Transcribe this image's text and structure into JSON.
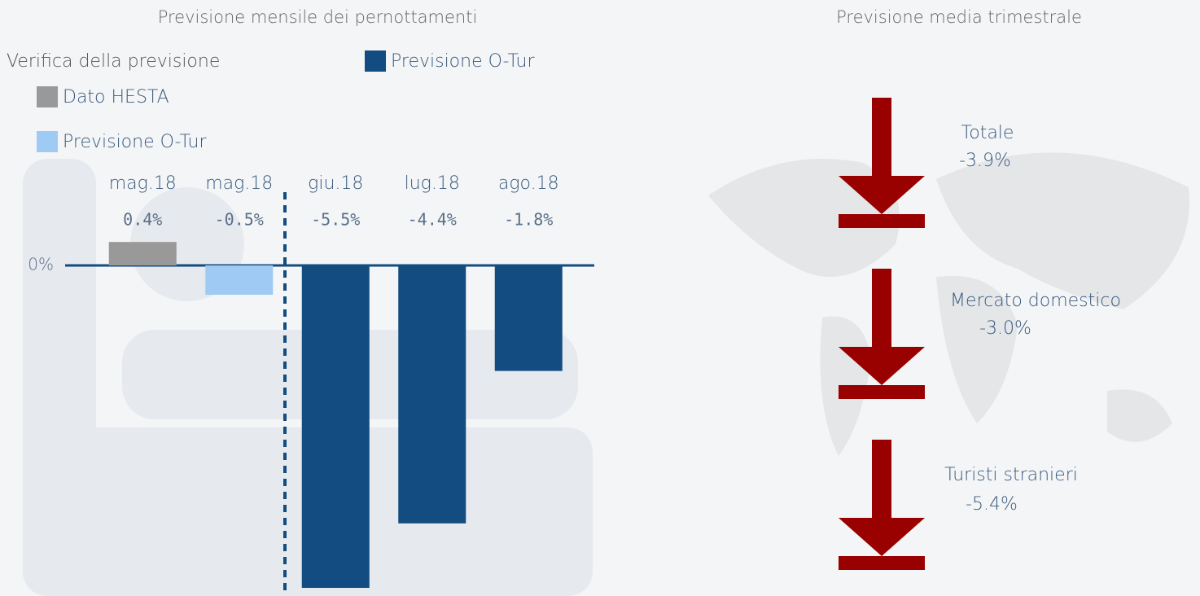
{
  "chart_data": [
    {
      "type": "bar",
      "title": "Previsione mensile dei pernottamenti",
      "legend_title": "Verifica della previsione",
      "categories": [
        "mag.18",
        "mag.18",
        "giu.18",
        "lug.18",
        "ago.18"
      ],
      "series": [
        {
          "name": "Dato HESTA",
          "color": "#999999",
          "values": [
            0.4,
            null,
            null,
            null,
            null
          ],
          "value_labels": [
            "0.4%",
            null,
            null,
            null,
            null
          ]
        },
        {
          "name": "Previsione O-Tur",
          "color": "#9ecaf4",
          "values": [
            null,
            -0.5,
            null,
            null,
            null
          ],
          "value_labels": [
            null,
            "-0.5%",
            null,
            null,
            null
          ]
        },
        {
          "name": "Previsione O-Tur",
          "color": "#134c80",
          "values": [
            null,
            null,
            -5.5,
            -4.4,
            -1.8
          ],
          "value_labels": [
            null,
            null,
            "-5.5%",
            "-4.4%",
            "-1.8%"
          ]
        }
      ],
      "ylim": [
        -5.6,
        0.5
      ],
      "yticks": [
        {
          "value": 0,
          "label": "0%"
        }
      ]
    },
    {
      "type": "indicator",
      "title": "Previsione media trimestrale",
      "color": "#990000",
      "items": [
        {
          "label": "Totale",
          "value": -3.9,
          "value_label": "-3.9%"
        },
        {
          "label": "Mercato domestico",
          "value": -3.0,
          "value_label": "-3.0%"
        },
        {
          "label": "Turisti stranieri",
          "value": -5.4,
          "value_label": "-5.4%"
        }
      ]
    }
  ]
}
